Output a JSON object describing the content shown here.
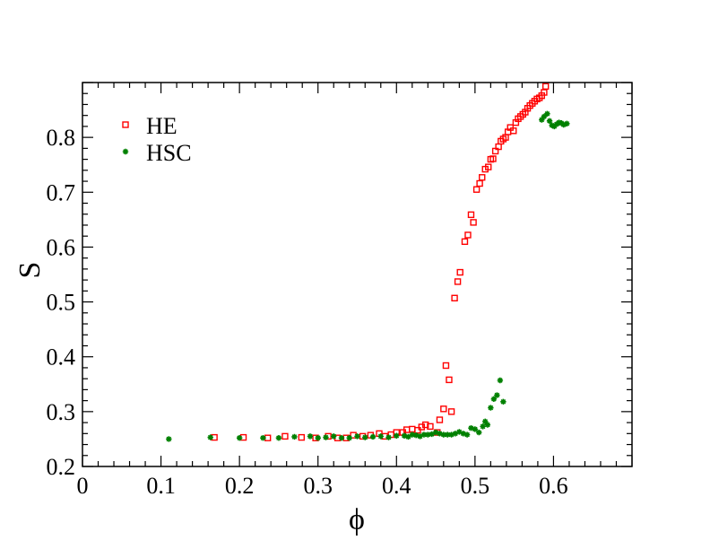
{
  "chart_data": {
    "type": "scatter",
    "title": "",
    "xlabel": "ϕ",
    "ylabel": "S",
    "xlim": [
      0,
      0.7
    ],
    "ylim": [
      0.2,
      0.9
    ],
    "x_ticks": [
      0,
      0.1,
      0.2,
      0.3,
      0.4,
      0.5,
      0.6
    ],
    "x_tick_labels": [
      "0",
      "0.1",
      "0.2",
      "0.3",
      "0.4",
      "0.5",
      "0.6"
    ],
    "y_ticks": [
      0.2,
      0.3,
      0.4,
      0.5,
      0.6,
      0.7,
      0.8
    ],
    "y_tick_labels": [
      "0.2",
      "0.3",
      "0.4",
      "0.5",
      "0.6",
      "0.7",
      "0.8"
    ],
    "grid": false,
    "legend_position": "top-left",
    "series": [
      {
        "name": "HE",
        "marker": "open-square",
        "color": "#ff0000",
        "x": [
          0.168,
          0.205,
          0.236,
          0.258,
          0.279,
          0.297,
          0.313,
          0.325,
          0.336,
          0.345,
          0.357,
          0.367,
          0.378,
          0.385,
          0.393,
          0.4,
          0.408,
          0.413,
          0.42,
          0.427,
          0.432,
          0.437,
          0.443,
          0.452,
          0.455,
          0.46,
          0.463,
          0.467,
          0.47,
          0.474,
          0.478,
          0.481,
          0.487,
          0.491,
          0.495,
          0.498,
          0.502,
          0.506,
          0.509,
          0.513,
          0.517,
          0.52,
          0.523,
          0.526,
          0.53,
          0.533,
          0.536,
          0.539,
          0.542,
          0.545,
          0.549,
          0.552,
          0.555,
          0.558,
          0.561,
          0.564,
          0.567,
          0.57,
          0.573,
          0.576,
          0.579,
          0.582,
          0.585,
          0.588,
          0.59
        ],
        "y": [
          0.253,
          0.253,
          0.252,
          0.255,
          0.253,
          0.252,
          0.255,
          0.252,
          0.252,
          0.257,
          0.255,
          0.257,
          0.26,
          0.255,
          0.258,
          0.262,
          0.262,
          0.267,
          0.268,
          0.266,
          0.272,
          0.276,
          0.273,
          0.262,
          0.285,
          0.305,
          0.384,
          0.358,
          0.3,
          0.507,
          0.537,
          0.554,
          0.61,
          0.622,
          0.659,
          0.645,
          0.705,
          0.716,
          0.727,
          0.742,
          0.746,
          0.76,
          0.761,
          0.775,
          0.783,
          0.793,
          0.797,
          0.8,
          0.81,
          0.818,
          0.812,
          0.827,
          0.834,
          0.838,
          0.842,
          0.846,
          0.853,
          0.858,
          0.862,
          0.866,
          0.87,
          0.872,
          0.876,
          0.882,
          0.893
        ]
      },
      {
        "name": "HSC",
        "marker": "star",
        "color": "#008000",
        "x": [
          0.11,
          0.163,
          0.2,
          0.23,
          0.25,
          0.27,
          0.29,
          0.3,
          0.31,
          0.32,
          0.33,
          0.34,
          0.35,
          0.36,
          0.37,
          0.38,
          0.39,
          0.4,
          0.41,
          0.415,
          0.42,
          0.425,
          0.43,
          0.435,
          0.44,
          0.445,
          0.45,
          0.455,
          0.46,
          0.465,
          0.47,
          0.475,
          0.48,
          0.485,
          0.49,
          0.495,
          0.5,
          0.505,
          0.51,
          0.513,
          0.516,
          0.52,
          0.524,
          0.528,
          0.532,
          0.536,
          0.585,
          0.588,
          0.592,
          0.595,
          0.598,
          0.601,
          0.604,
          0.607,
          0.61,
          0.613,
          0.617
        ],
        "y": [
          0.25,
          0.253,
          0.252,
          0.252,
          0.252,
          0.254,
          0.255,
          0.252,
          0.253,
          0.255,
          0.252,
          0.252,
          0.255,
          0.253,
          0.254,
          0.255,
          0.253,
          0.256,
          0.256,
          0.254,
          0.258,
          0.257,
          0.255,
          0.258,
          0.258,
          0.259,
          0.262,
          0.26,
          0.258,
          0.258,
          0.258,
          0.26,
          0.263,
          0.26,
          0.258,
          0.27,
          0.268,
          0.262,
          0.273,
          0.282,
          0.276,
          0.307,
          0.323,
          0.33,
          0.357,
          0.318,
          0.832,
          0.838,
          0.843,
          0.83,
          0.822,
          0.82,
          0.824,
          0.827,
          0.826,
          0.823,
          0.825
        ]
      }
    ]
  }
}
